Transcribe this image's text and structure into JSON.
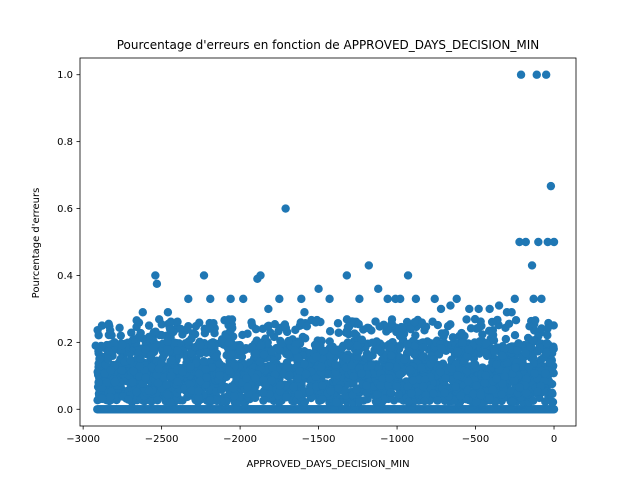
{
  "chart_data": {
    "type": "scatter",
    "title": "Pourcentage d'erreurs en fonction de APPROVED_DAYS_DECISION_MIN",
    "xlabel": "APPROVED_DAYS_DECISION_MIN",
    "ylabel": "Pourcentage d'erreurs",
    "xlim": [
      -3020,
      140
    ],
    "ylim": [
      -0.05,
      1.05
    ],
    "xticks": [
      -3000,
      -2500,
      -2000,
      -1500,
      -1000,
      -500,
      0
    ],
    "xtick_labels": [
      "−3000",
      "−2500",
      "−2000",
      "−1500",
      "−1000",
      "−500",
      "0"
    ],
    "yticks": [
      0.0,
      0.2,
      0.4,
      0.6,
      0.8,
      1.0
    ],
    "ytick_labels": [
      "0.0",
      "0.2",
      "0.4",
      "0.6",
      "0.8",
      "1.0"
    ],
    "grid": false,
    "marker_color": "#1f77b4",
    "series": [
      {
        "x": [
          -210,
          -110,
          -50,
          -20,
          -1710,
          -1180,
          -1890,
          -2230,
          -2540,
          -1320,
          -930,
          -620,
          -410,
          -220,
          -180,
          -140,
          -100,
          -40,
          0,
          -2530,
          -1870,
          -880,
          -540,
          -130,
          -2880,
          -2920,
          -2580,
          -2330,
          -2190,
          -1980,
          -1750,
          -1610,
          -1430,
          -1240,
          -1010,
          -760,
          -660,
          -350,
          -250,
          -80,
          -2620,
          -2460,
          -2060,
          -1820,
          -1590,
          -1500,
          -1120,
          -1060,
          -980,
          -720,
          -480,
          -300,
          -270,
          -2760,
          -2800
        ],
        "y": [
          1.0,
          1.0,
          1.0,
          0.667,
          0.6,
          0.43,
          0.39,
          0.4,
          0.4,
          0.4,
          0.4,
          0.33,
          0.3,
          0.5,
          0.5,
          0.43,
          0.5,
          0.5,
          0.5,
          0.375,
          0.4,
          0.33,
          0.3,
          0.33,
          0.25,
          0.19,
          0.25,
          0.33,
          0.33,
          0.33,
          0.33,
          0.33,
          0.33,
          0.33,
          0.33,
          0.33,
          0.31,
          0.31,
          0.33,
          0.33,
          0.29,
          0.29,
          0.33,
          0.3,
          0.29,
          0.36,
          0.36,
          0.33,
          0.33,
          0.3,
          0.3,
          0.29,
          0.29,
          0.22,
          0.2
        ]
      }
    ]
  }
}
